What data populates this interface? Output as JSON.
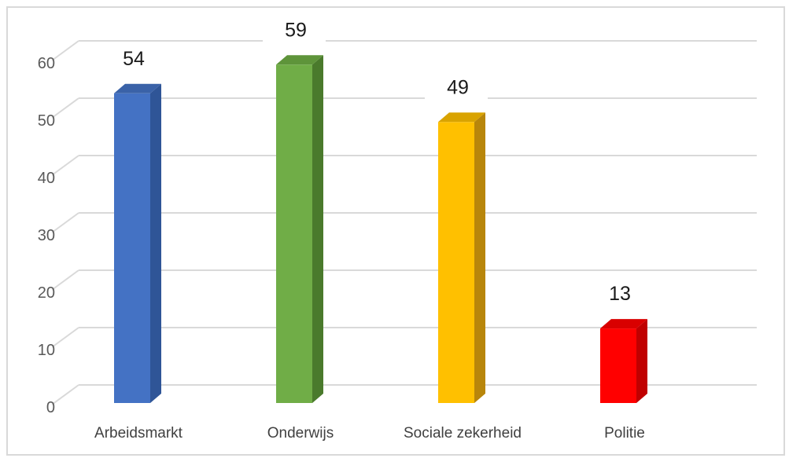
{
  "chart_data": {
    "type": "bar",
    "categories": [
      "Arbeidsmarkt",
      "Onderwijs",
      "Sociale zekerheid",
      "Politie"
    ],
    "values": [
      54,
      59,
      49,
      13
    ],
    "data_labels": [
      "54",
      "59",
      "49",
      "13"
    ],
    "colors": [
      "#4472C4",
      "#70AD47",
      "#FFC000",
      "#FF0000"
    ],
    "side_colors": [
      "#2F5597",
      "#4A7A2C",
      "#B8860B",
      "#C00000"
    ],
    "top_colors": [
      "#3A62A8",
      "#5E943A",
      "#D9A300",
      "#D90000"
    ],
    "yticks": [
      "0",
      "10",
      "20",
      "30",
      "40",
      "50",
      "60"
    ],
    "ylim": [
      0,
      60
    ],
    "grid": true,
    "style": "3d-column",
    "title": "",
    "xlabel": "",
    "ylabel": ""
  }
}
